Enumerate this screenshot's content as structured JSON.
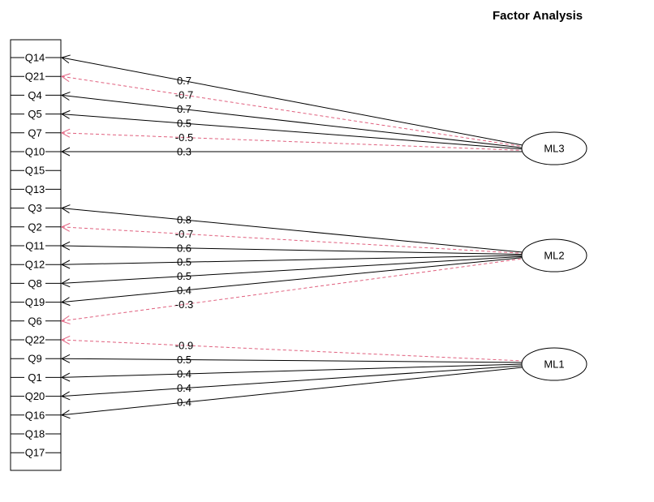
{
  "title": "Factor Analysis",
  "items": [
    "Q14",
    "Q21",
    "Q4",
    "Q5",
    "Q7",
    "Q10",
    "Q15",
    "Q13",
    "Q3",
    "Q2",
    "Q11",
    "Q12",
    "Q8",
    "Q19",
    "Q6",
    "Q22",
    "Q9",
    "Q1",
    "Q20",
    "Q16",
    "Q18",
    "Q17"
  ],
  "factors": [
    "ML3",
    "ML2",
    "ML1"
  ],
  "loadings": [
    {
      "item": "Q14",
      "factor": "ML3",
      "label": "0.7",
      "negative": false
    },
    {
      "item": "Q21",
      "factor": "ML3",
      "label": "-0.7",
      "negative": true
    },
    {
      "item": "Q4",
      "factor": "ML3",
      "label": "0.7",
      "negative": false
    },
    {
      "item": "Q5",
      "factor": "ML3",
      "label": "0.5",
      "negative": false
    },
    {
      "item": "Q7",
      "factor": "ML3",
      "label": "-0.5",
      "negative": true
    },
    {
      "item": "Q10",
      "factor": "ML3",
      "label": "0.3",
      "negative": false
    },
    {
      "item": "Q3",
      "factor": "ML2",
      "label": "0.8",
      "negative": false
    },
    {
      "item": "Q2",
      "factor": "ML2",
      "label": "-0.7",
      "negative": true
    },
    {
      "item": "Q11",
      "factor": "ML2",
      "label": "0.6",
      "negative": false
    },
    {
      "item": "Q12",
      "factor": "ML2",
      "label": "0.5",
      "negative": false
    },
    {
      "item": "Q8",
      "factor": "ML2",
      "label": "0.5",
      "negative": false
    },
    {
      "item": "Q19",
      "factor": "ML2",
      "label": "0.4",
      "negative": false
    },
    {
      "item": "Q6",
      "factor": "ML2",
      "label": "-0.3",
      "negative": true
    },
    {
      "item": "Q22",
      "factor": "ML1",
      "label": "-0.9",
      "negative": true
    },
    {
      "item": "Q9",
      "factor": "ML1",
      "label": "0.5",
      "negative": false
    },
    {
      "item": "Q1",
      "factor": "ML1",
      "label": "0.4",
      "negative": false
    },
    {
      "item": "Q20",
      "factor": "ML1",
      "label": "0.4",
      "negative": false
    },
    {
      "item": "Q16",
      "factor": "ML1",
      "label": "0.4",
      "negative": false
    }
  ],
  "colors": {
    "positive": "#000000",
    "negative": "#e0607e"
  }
}
